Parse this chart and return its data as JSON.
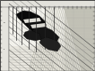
{
  "figsize": [
    1.06,
    0.8
  ],
  "dpi": 100,
  "bg_color": "#f0efeb",
  "main_bg": "#f5f4f0",
  "left_col_color": "#e8e7e2",
  "top_bar_color": "#e8e7e2",
  "right_hatch_bg": "#d8d7d0",
  "grid_color": "#aaaaaa",
  "strat_line_color": "#333333",
  "ore_color": "#111111",
  "border_color": "#444444",
  "bottom_bg": "#dddbd2"
}
